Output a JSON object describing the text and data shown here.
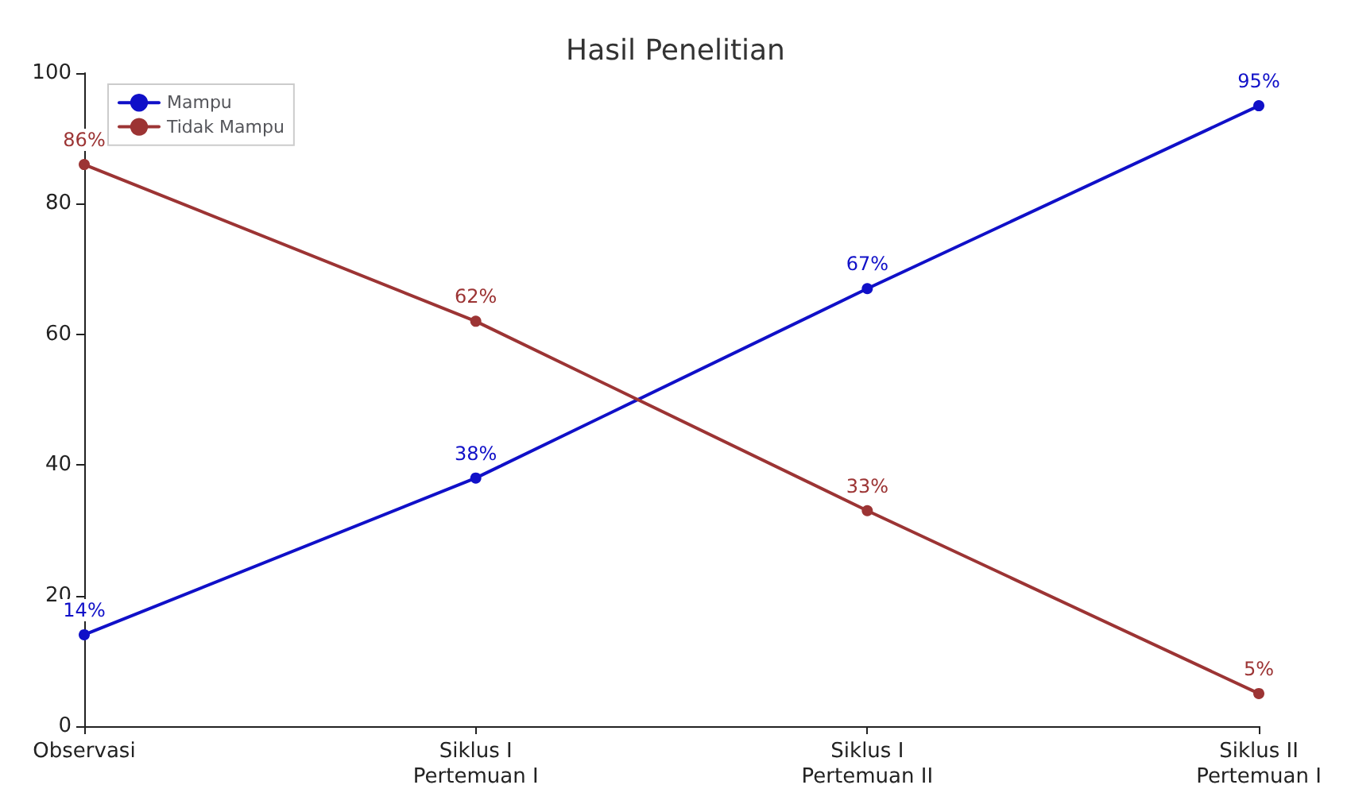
{
  "chart_data": {
    "type": "line",
    "title": "Hasil Penelitian",
    "categories": [
      "Observasi",
      "Siklus I\nPertemuan I",
      "Siklus I\nPertemuan II",
      "Siklus II\nPertemuan I"
    ],
    "series": [
      {
        "name": "Mampu",
        "color": "#1010c8",
        "values": [
          14,
          38,
          67,
          95
        ],
        "value_labels": [
          "14%",
          "38%",
          "67%",
          "95%"
        ]
      },
      {
        "name": "Tidak Mampu",
        "color": "#9c3434",
        "values": [
          86,
          62,
          33,
          5
        ],
        "value_labels": [
          "86%",
          "62%",
          "33%",
          "5%"
        ]
      }
    ],
    "ylim": [
      0,
      100
    ],
    "yticks": [
      0,
      20,
      40,
      60,
      80,
      100
    ],
    "grid": false,
    "legend": "top left",
    "marker": "circle",
    "line_style": "solid"
  }
}
